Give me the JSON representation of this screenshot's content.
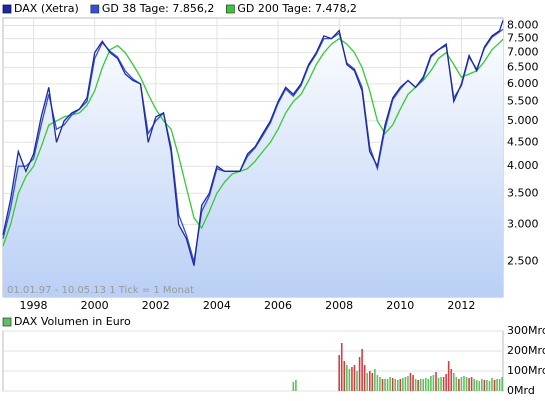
{
  "chart_data": [
    {
      "type": "line",
      "log": true,
      "grid": true,
      "annotation": "01.01.97 - 10.05.13   1 Tick = 1 Monat",
      "x": [
        1997,
        1997.25,
        1997.5,
        1997.75,
        1998,
        1998.25,
        1998.5,
        1998.75,
        1999,
        1999.25,
        1999.5,
        1999.75,
        2000,
        2000.25,
        2000.5,
        2000.75,
        2001,
        2001.25,
        2001.5,
        2001.75,
        2002,
        2002.25,
        2002.5,
        2002.75,
        2003,
        2003.25,
        2003.5,
        2003.75,
        2004,
        2004.25,
        2004.5,
        2004.75,
        2005,
        2005.25,
        2005.5,
        2005.75,
        2006,
        2006.25,
        2006.5,
        2006.75,
        2007,
        2007.25,
        2007.5,
        2007.75,
        2008,
        2008.25,
        2008.5,
        2008.75,
        2009,
        2009.25,
        2009.5,
        2009.75,
        2010,
        2010.25,
        2010.5,
        2010.75,
        2011,
        2011.25,
        2011.5,
        2011.75,
        2012,
        2012.25,
        2012.5,
        2012.75,
        2013,
        2013.25,
        2013.36
      ],
      "series": [
        {
          "name": "DAX (Xetra)",
          "color": "#1f2a9a",
          "area": true,
          "values": [
            2850,
            3400,
            4300,
            3900,
            4250,
            5100,
            5900,
            4500,
            5000,
            5200,
            5300,
            5600,
            7000,
            7400,
            7000,
            6800,
            6300,
            6100,
            6000,
            4500,
            5100,
            5200,
            4300,
            3000,
            2800,
            2450,
            3300,
            3500,
            4000,
            3900,
            3900,
            3900,
            4250,
            4400,
            4700,
            5000,
            5500,
            5900,
            5700,
            6000,
            6600,
            7000,
            7600,
            7500,
            7800,
            6600,
            6400,
            5800,
            4300,
            4000,
            4900,
            5600,
            5900,
            6100,
            5900,
            6200,
            6900,
            7100,
            7300,
            5500,
            6000,
            6900,
            6400,
            7200,
            7600,
            7800,
            8200
          ]
        },
        {
          "name": "GD 38 Tage: 7.856,2",
          "color": "#3050e0",
          "values": [
            2800,
            3250,
            4000,
            4000,
            4150,
            4900,
            5700,
            4800,
            4900,
            5150,
            5300,
            5500,
            6800,
            7350,
            7050,
            6850,
            6400,
            6150,
            6000,
            4700,
            5000,
            5200,
            4400,
            3150,
            2850,
            2500,
            3200,
            3450,
            3950,
            3900,
            3900,
            3900,
            4200,
            4380,
            4650,
            4950,
            5450,
            5850,
            5650,
            5950,
            6550,
            6950,
            7500,
            7500,
            7700,
            6650,
            6450,
            5900,
            4400,
            3950,
            4800,
            5550,
            5850,
            6100,
            5900,
            6150,
            6850,
            7100,
            7250,
            5600,
            5950,
            6850,
            6450,
            7150,
            7550,
            7750,
            7856.2
          ]
        },
        {
          "name": "GD 200 Tage: 7.478,2",
          "color": "#33cc33",
          "values": [
            2700,
            3000,
            3500,
            3800,
            4000,
            4400,
            4900,
            5000,
            5100,
            5150,
            5200,
            5400,
            5800,
            6500,
            7100,
            7250,
            7000,
            6600,
            6200,
            5700,
            5300,
            5000,
            4800,
            4200,
            3600,
            3100,
            2950,
            3200,
            3500,
            3700,
            3850,
            3900,
            3950,
            4100,
            4300,
            4500,
            4800,
            5200,
            5500,
            5700,
            6100,
            6600,
            7000,
            7300,
            7500,
            7300,
            7000,
            6500,
            5800,
            5000,
            4700,
            4900,
            5300,
            5700,
            5900,
            6100,
            6400,
            6800,
            7000,
            6600,
            6200,
            6300,
            6400,
            6700,
            7100,
            7350,
            7478.2
          ]
        }
      ],
      "xlim": [
        1997,
        2013.36
      ],
      "xticks": [
        1998,
        2000,
        2002,
        2004,
        2006,
        2008,
        2010,
        2012
      ],
      "ylim": [
        2100,
        8300
      ],
      "yticks": [
        {
          "value": 2500,
          "label": "2.500"
        },
        {
          "value": 3000,
          "label": "3.000"
        },
        {
          "value": 3500,
          "label": "3.500"
        },
        {
          "value": 4000,
          "label": "4.000"
        },
        {
          "value": 4500,
          "label": "4.500"
        },
        {
          "value": 5000,
          "label": "5.000"
        },
        {
          "value": 5500,
          "label": "5.500"
        },
        {
          "value": 6000,
          "label": "6.000"
        },
        {
          "value": 6500,
          "label": "6.500"
        },
        {
          "value": 7000,
          "label": "7.000"
        },
        {
          "value": 7500,
          "label": "7.500"
        },
        {
          "value": 8000,
          "label": "8.000"
        }
      ]
    },
    {
      "type": "bar",
      "grid": true,
      "x": [
        2006.5,
        2006.583,
        2008,
        2008.083,
        2008.167,
        2008.25,
        2008.333,
        2008.417,
        2008.5,
        2008.583,
        2008.667,
        2008.75,
        2008.833,
        2008.917,
        2009,
        2009.083,
        2009.167,
        2009.25,
        2009.333,
        2009.417,
        2009.5,
        2009.583,
        2009.667,
        2009.75,
        2009.833,
        2009.917,
        2010,
        2010.083,
        2010.167,
        2010.25,
        2010.333,
        2010.417,
        2010.5,
        2010.583,
        2010.667,
        2010.75,
        2010.833,
        2010.917,
        2011,
        2011.083,
        2011.167,
        2011.25,
        2011.333,
        2011.417,
        2011.5,
        2011.583,
        2011.667,
        2011.75,
        2011.833,
        2011.917,
        2012,
        2012.083,
        2012.167,
        2012.25,
        2012.333,
        2012.417,
        2012.5,
        2012.583,
        2012.667,
        2012.75,
        2012.833,
        2012.917,
        2013,
        2013.083,
        2013.167,
        2013.25,
        2013.333
      ],
      "series": [
        {
          "name": "DAX Volumen in Euro",
          "color": "#60c060",
          "values": [
            45,
            55,
            180,
            240,
            150,
            130,
            110,
            120,
            130,
            100,
            170,
            210,
            130,
            90,
            100,
            90,
            110,
            80,
            70,
            60,
            60,
            60,
            70,
            65,
            60,
            55,
            60,
            65,
            70,
            75,
            90,
            80,
            60,
            55,
            60,
            60,
            65,
            60,
            75,
            80,
            95,
            65,
            70,
            70,
            85,
            150,
            110,
            90,
            70,
            60,
            70,
            75,
            70,
            65,
            70,
            60,
            55,
            50,
            60,
            55,
            55,
            50,
            65,
            55,
            60,
            60,
            70
          ],
          "colors": [
            "#60c060",
            "#60c060",
            "#d04040",
            "#d04040",
            "#d04040",
            "#60c060",
            "#60c060",
            "#d04040",
            "#d04040",
            "#60c060",
            "#d04040",
            "#d04040",
            "#d04040",
            "#60c060",
            "#d04040",
            "#d04040",
            "#60c060",
            "#60c060",
            "#60c060",
            "#d04040",
            "#60c060",
            "#60c060",
            "#60c060",
            "#d04040",
            "#60c060",
            "#60c060",
            "#d04040",
            "#60c060",
            "#60c060",
            "#60c060",
            "#d04040",
            "#d04040",
            "#60c060",
            "#d04040",
            "#60c060",
            "#60c060",
            "#60c060",
            "#60c060",
            "#60c060",
            "#60c060",
            "#d04040",
            "#60c060",
            "#60c060",
            "#d04040",
            "#d04040",
            "#d04040",
            "#d04040",
            "#60c060",
            "#60c060",
            "#d04040",
            "#60c060",
            "#60c060",
            "#60c060",
            "#d04040",
            "#d04040",
            "#60c060",
            "#60c060",
            "#60c060",
            "#60c060",
            "#d04040",
            "#60c060",
            "#60c060",
            "#60c060",
            "#d04040",
            "#60c060",
            "#60c060",
            "#60c060"
          ]
        }
      ],
      "xlim": [
        1997,
        2013.36
      ],
      "ylim": [
        0,
        300
      ],
      "yticks": [
        {
          "value": 0,
          "label": "0Mrd"
        },
        {
          "value": 100,
          "label": "100Mrd"
        },
        {
          "value": 200,
          "label": "200Mrd"
        },
        {
          "value": 300,
          "label": "300Mrd"
        }
      ]
    }
  ]
}
